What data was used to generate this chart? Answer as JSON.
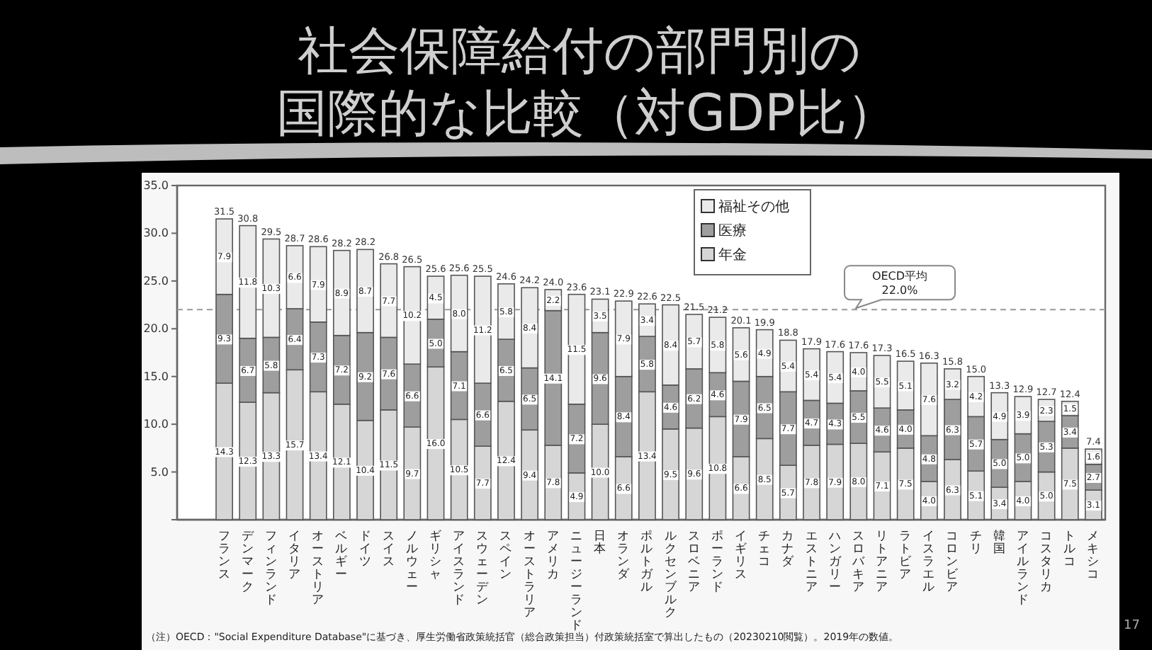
{
  "chart_data": {
    "type": "bar",
    "stacked": true,
    "title": "社会保障給付の部門別の国際的な比較（対GDP比）",
    "categories": [
      "フランス",
      "デンマーク",
      "フィンランド",
      "イタリア",
      "オーストリア",
      "ベルギー",
      "ドイツ",
      "スイス",
      "ノルウェー",
      "ギリシャ",
      "アイスランド",
      "スウェーデン",
      "スペイン",
      "オーストラリア",
      "アメリカ",
      "ニュージーランド",
      "日本",
      "オランダ",
      "ポルトガル",
      "ルクセンブルク",
      "スロベニア",
      "ポーランド",
      "イギリス",
      "チェコ",
      "カナダ",
      "エストニア",
      "ハンガリー",
      "スロバキア",
      "リトアニア",
      "ラトビア",
      "イスラエル",
      "コロンビア",
      "チリ",
      "韓国",
      "アイルランド",
      "コスタリカ",
      "トルコ",
      "メキシコ"
    ],
    "series": [
      {
        "name": "年金",
        "color": "#d6d6d6",
        "values": [
          14.3,
          12.3,
          13.3,
          15.7,
          13.4,
          12.1,
          10.4,
          11.5,
          9.7,
          16.0,
          10.5,
          7.7,
          12.4,
          9.4,
          7.8,
          4.9,
          10.0,
          6.6,
          13.4,
          9.5,
          9.6,
          10.8,
          6.6,
          8.5,
          5.7,
          7.8,
          7.9,
          8.0,
          7.1,
          7.5,
          4.0,
          6.3,
          5.1,
          3.4,
          4.0,
          5.0,
          7.5,
          3.1
        ],
        "value_labels": [
          "14.3",
          "12.3",
          "13.3",
          "15.7",
          "13.4",
          "12.1",
          "10.4",
          "11.5",
          "9.7",
          "16.0",
          "10.5",
          "7.7",
          "12.4",
          "9.4",
          "7.8",
          "4.9",
          "10.0",
          "6.6",
          "13.4",
          "9.5",
          "9.6",
          "10.8",
          "6.6",
          "8.5",
          "5.7",
          "7.8",
          "7.9",
          "8.0",
          "7.1",
          "7.5",
          "4.0",
          "6.3",
          "5.1",
          "3.4",
          "4.0",
          "5.0",
          "7.5",
          "3.1"
        ]
      },
      {
        "name": "医療",
        "color": "#9e9e9e",
        "values": [
          9.3,
          6.7,
          5.8,
          6.4,
          7.3,
          7.2,
          9.2,
          7.6,
          6.6,
          5.0,
          7.1,
          6.6,
          6.5,
          6.5,
          14.1,
          7.2,
          9.6,
          8.4,
          5.8,
          4.6,
          6.2,
          4.6,
          7.9,
          6.5,
          7.7,
          4.7,
          4.3,
          5.5,
          4.6,
          4.0,
          4.8,
          6.3,
          5.7,
          5.0,
          5.0,
          5.3,
          3.4,
          2.7
        ],
        "value_labels": [
          "9.3",
          "6.7",
          "5.8",
          "6.4",
          "7.3",
          "7.2",
          "9.2",
          "7.6",
          "6.6",
          "5.0",
          "7.1",
          "6.6",
          "6.5",
          "6.5",
          "14.1",
          "7.2",
          "9.6",
          "8.4",
          "5.8",
          "4.6",
          "6.2",
          "4.6",
          "7.9",
          "6.5",
          "7.7",
          "4.7",
          "4.3",
          "5.5",
          "4.6",
          "4.0",
          "4.8",
          "6.3",
          "5.7",
          "5.0",
          "5.0",
          "5.3",
          "3.4",
          "2.7"
        ]
      },
      {
        "name": "福祉その他",
        "color": "#eaeaea",
        "values": [
          7.9,
          11.8,
          10.3,
          6.6,
          7.9,
          8.9,
          8.7,
          7.7,
          10.2,
          4.5,
          8.0,
          11.2,
          5.8,
          8.4,
          2.2,
          11.5,
          3.5,
          7.9,
          3.4,
          8.4,
          5.7,
          5.8,
          5.6,
          4.9,
          5.4,
          5.4,
          5.4,
          4.0,
          5.5,
          5.1,
          7.6,
          3.2,
          4.2,
          4.9,
          3.9,
          2.3,
          1.5,
          1.6
        ],
        "value_labels": [
          "7.9",
          "11.8",
          "10.3",
          "6.6",
          "7.9",
          "8.9",
          "8.7",
          "7.7",
          "10.2",
          "4.5",
          "8.0",
          "11.2",
          "5.8",
          "8.4",
          "2.2",
          "11.5",
          "3.5",
          "7.9",
          "3.4",
          "8.4",
          "5.7",
          "5.8",
          "5.6",
          "4.9",
          "5.4",
          "5.4",
          "5.4",
          "4.0",
          "5.5",
          "5.1",
          "7.6",
          "3.2",
          "4.2",
          "4.9",
          "3.9",
          "2.3",
          "1.5",
          "1.6"
        ]
      }
    ],
    "totals": [
      "31.5",
      "30.8",
      "29.5",
      "28.7",
      "28.6",
      "28.2",
      "28.2",
      "26.8",
      "26.5",
      "25.6",
      "25.6",
      "25.5",
      "24.6",
      "24.2",
      "24.0",
      "23.6",
      "23.1",
      "22.9",
      "22.6",
      "22.5",
      "21.5",
      "21.2",
      "20.1",
      "19.9",
      "18.8",
      "17.9",
      "17.6",
      "17.6",
      "17.3",
      "16.5",
      "16.3",
      "15.8",
      "15.0",
      "13.3",
      "12.9",
      "12.7",
      "12.4",
      "7.4"
    ],
    "ylim": [
      0,
      35
    ],
    "yticks": [
      {
        "value": 0,
        "label": null
      },
      {
        "value": 5,
        "label": "5.0"
      },
      {
        "value": 10,
        "label": "10.0"
      },
      {
        "value": 15,
        "label": "15.0"
      },
      {
        "value": 20,
        "label": "20.0"
      },
      {
        "value": 25,
        "label": "25.0"
      },
      {
        "value": 30,
        "label": "30.0"
      },
      {
        "value": 35,
        "label": "35.0"
      }
    ],
    "ref_lines": [
      {
        "axis": "y",
        "value": 22.0,
        "label": "OECD平均\n22.0%",
        "line_style": "dashed",
        "color": "#999999"
      }
    ],
    "legend": "top",
    "grid": false,
    "annotations": [
      "（注）OECD：\"Social Expenditure Database\"に基づき、厚生労働省政策統括官（総合政策担当）付政策統括室で算出したもの（20230210閲覧）。2019年の数値。",
      "17"
    ]
  }
}
